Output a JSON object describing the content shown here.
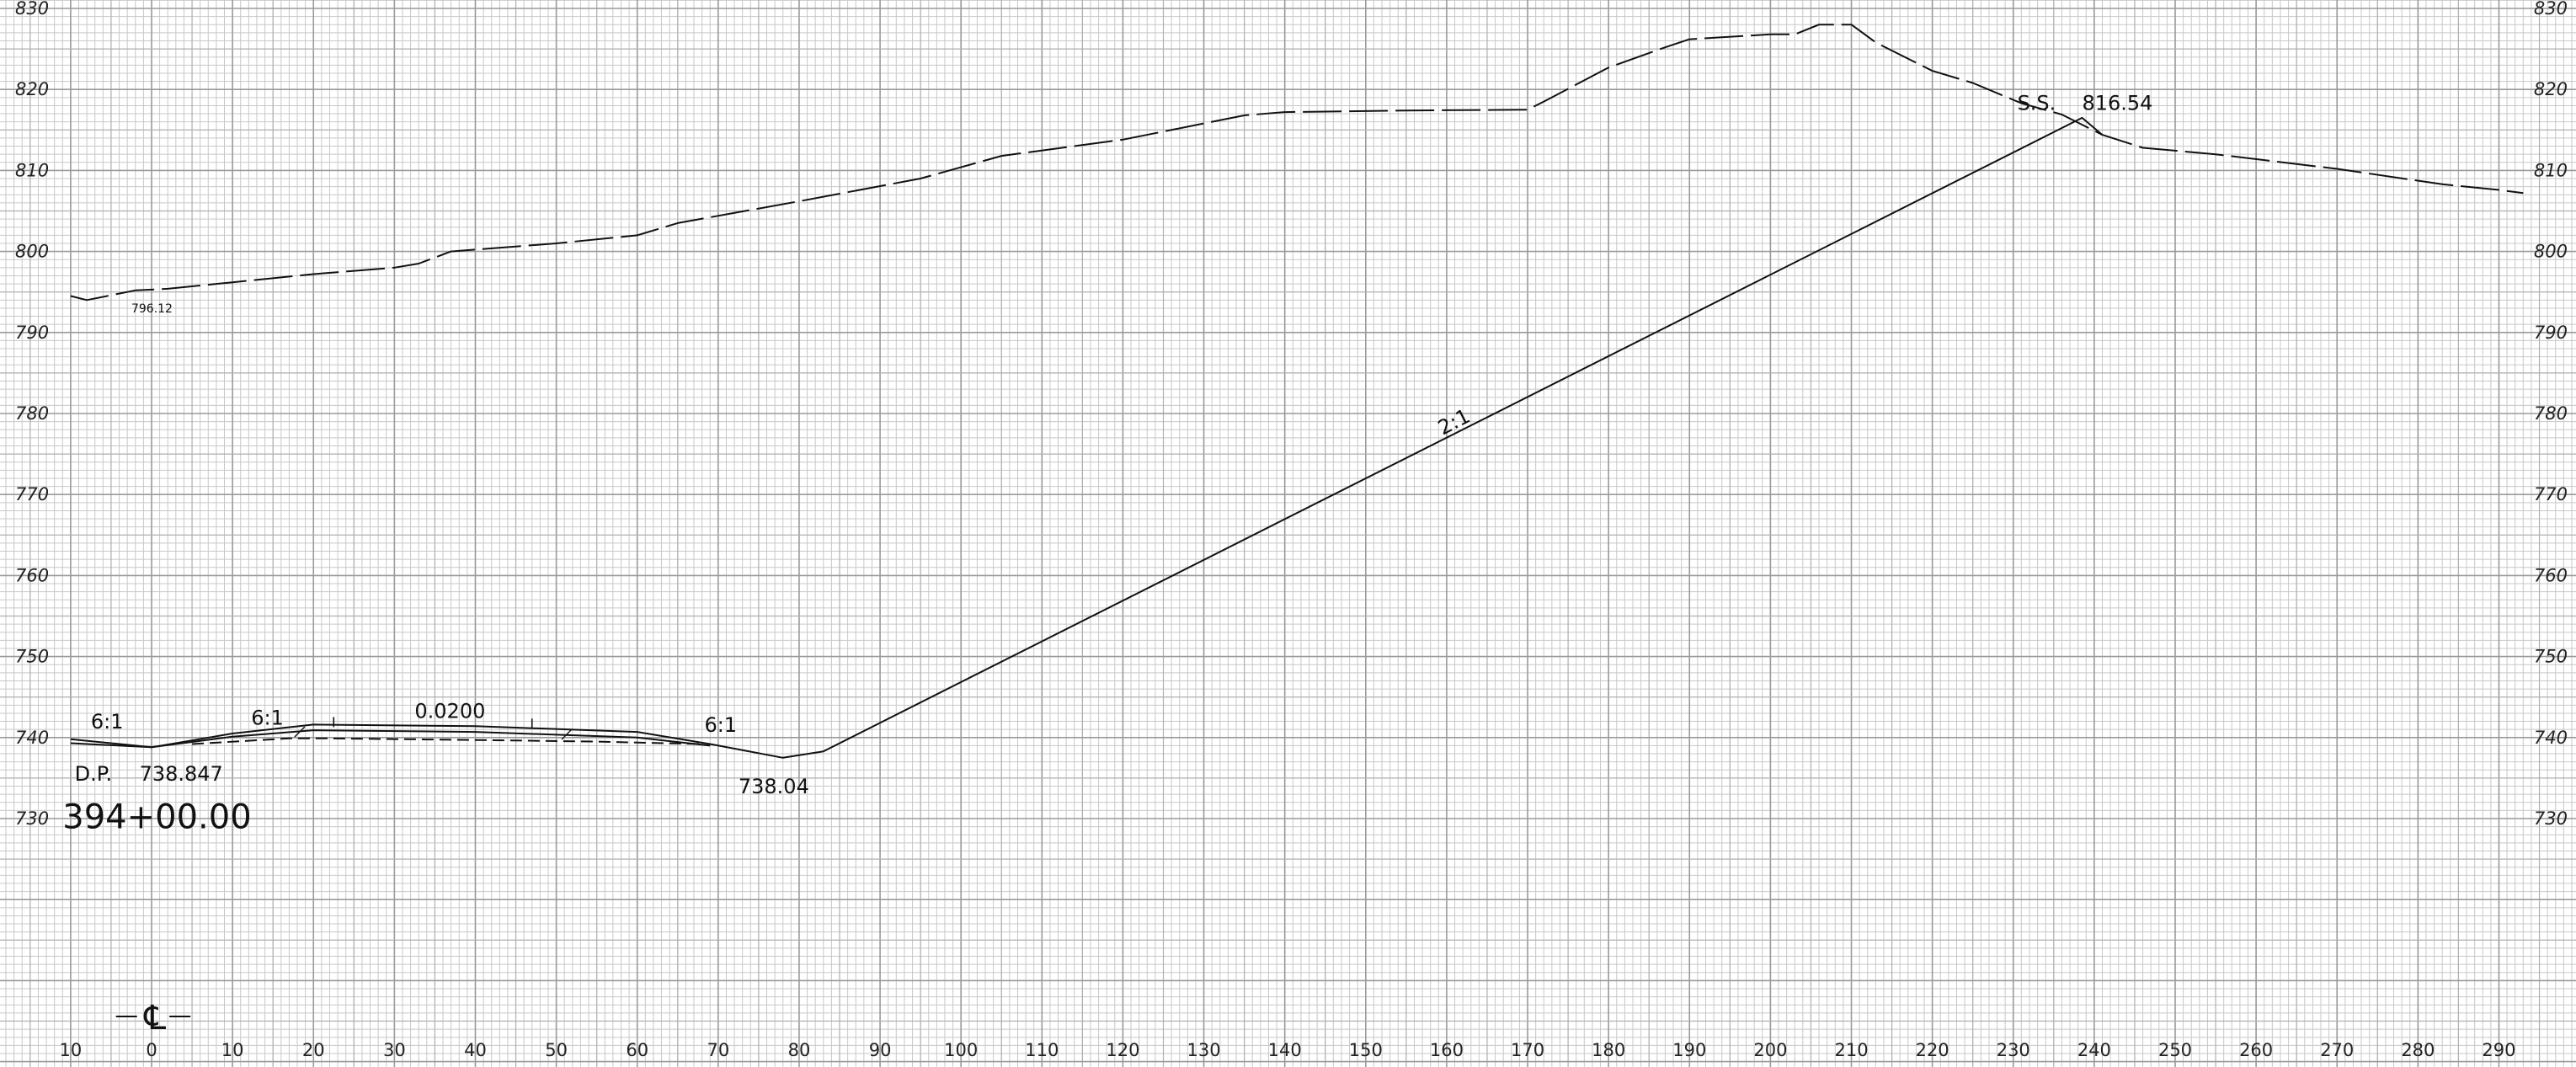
{
  "chart_data": {
    "type": "cross_section",
    "x_ticks": [
      "10",
      "0",
      "10",
      "20",
      "30",
      "40",
      "50",
      "60",
      "70",
      "80",
      "90",
      "100",
      "110",
      "120",
      "130",
      "140",
      "150",
      "160",
      "170",
      "180",
      "190",
      "200",
      "210",
      "220",
      "230",
      "240",
      "250",
      "260",
      "270",
      "280",
      "290"
    ],
    "y_ticks": [
      "730",
      "740",
      "750",
      "760",
      "770",
      "780",
      "790",
      "800",
      "810",
      "820",
      "830"
    ],
    "xlim": [
      -10,
      295
    ],
    "ylim": [
      705,
      830
    ],
    "grid": true,
    "centerline_symbol": "℄",
    "series": [
      {
        "style": "dashed",
        "points": [
          [
            -10,
            794.5
          ],
          [
            -8,
            794
          ],
          [
            -2,
            795.2
          ],
          [
            2,
            795.4
          ],
          [
            10,
            796.2
          ],
          [
            20,
            797.2
          ],
          [
            30,
            798
          ],
          [
            33,
            798.5
          ],
          [
            37,
            800
          ],
          [
            50,
            801
          ],
          [
            60,
            802
          ],
          [
            65,
            803.5
          ],
          [
            80,
            806.2
          ],
          [
            95,
            809
          ],
          [
            105,
            811.8
          ],
          [
            120,
            813.8
          ],
          [
            135,
            816.8
          ],
          [
            140,
            817.2
          ],
          [
            155,
            817.4
          ],
          [
            170,
            817.5
          ],
          [
            172,
            818.5
          ],
          [
            180,
            822.7
          ],
          [
            187,
            825.2
          ],
          [
            190,
            826.2
          ],
          [
            200,
            826.8
          ],
          [
            203,
            826.8
          ],
          [
            206,
            828
          ],
          [
            210,
            828
          ],
          [
            213,
            825.8
          ],
          [
            220,
            822.3
          ],
          [
            225,
            820.8
          ],
          [
            231,
            818.3
          ],
          [
            236,
            816.9
          ],
          [
            241,
            814.4
          ],
          [
            246,
            812.8
          ],
          [
            255,
            812
          ],
          [
            270,
            810.2
          ],
          [
            283,
            808.3
          ],
          [
            290,
            807.6
          ],
          [
            293,
            807.2
          ]
        ]
      },
      {
        "style": "solid",
        "points": [
          [
            -10,
            739.8
          ],
          [
            0,
            738.8
          ],
          [
            10,
            740.5
          ],
          [
            20,
            741.6
          ],
          [
            40,
            741.4
          ],
          [
            60,
            740.7
          ],
          [
            69,
            739.2
          ],
          [
            78,
            737.5
          ],
          [
            83,
            738.3
          ],
          [
            238.5,
            816.5
          ],
          [
            241,
            814.4
          ]
        ]
      },
      {
        "style": "solid",
        "points": [
          [
            -10,
            739.3
          ],
          [
            0,
            738.8
          ],
          [
            10,
            740.1
          ],
          [
            20,
            740.9
          ],
          [
            40,
            740.7
          ],
          [
            60,
            740
          ],
          [
            69,
            739
          ]
        ]
      },
      {
        "style": "dashed",
        "points": [
          [
            5,
            739.2
          ],
          [
            17,
            739.9
          ],
          [
            22,
            739.9
          ],
          [
            40,
            739.7
          ],
          [
            55,
            739.5
          ],
          [
            68,
            739.2
          ]
        ]
      }
    ],
    "annotations": [
      {
        "text": "6:1",
        "x": -7.5,
        "y": 741.1,
        "size": "md"
      },
      {
        "text": "6:1",
        "x": 12.3,
        "y": 741.6,
        "size": "md"
      },
      {
        "text": "0.0200",
        "x": 32.5,
        "y": 742.4,
        "size": "md"
      },
      {
        "text": "6:1",
        "x": 68.3,
        "y": 740.7,
        "size": "md"
      },
      {
        "text": "D.P.",
        "x": -9.5,
        "y": 734.7,
        "size": "md"
      },
      {
        "text": "738.847",
        "x": -1.5,
        "y": 734.7,
        "size": "md"
      },
      {
        "text": "738.04",
        "x": 72.5,
        "y": 733.1,
        "size": "md"
      },
      {
        "text": "394+00.00",
        "x": -11,
        "y": 728.8,
        "size": "lg"
      },
      {
        "text": "796.12",
        "x": -2.5,
        "y": 792.5,
        "size": "sm"
      },
      {
        "text": "2:1",
        "x": 159.5,
        "y": 777.3,
        "size": "md",
        "rotate": -27
      },
      {
        "text": "S.S.",
        "x": 230.5,
        "y": 817.5,
        "size": "md"
      },
      {
        "text": "816.54",
        "x": 238.5,
        "y": 817.5,
        "size": "md"
      }
    ]
  }
}
